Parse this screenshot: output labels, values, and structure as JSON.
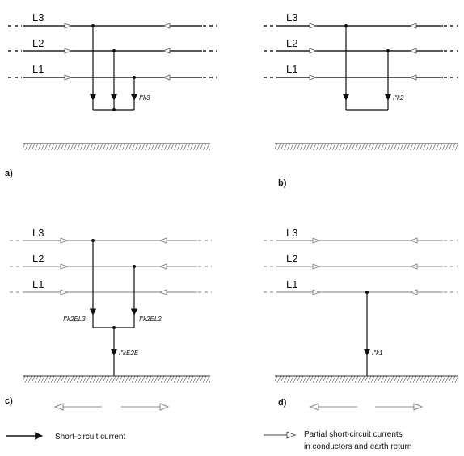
{
  "conductors": [
    "L3",
    "L2",
    "L1"
  ],
  "panels": {
    "a": {
      "label": "a)",
      "current": "I″k3"
    },
    "b": {
      "label": "b)",
      "current": "I″k2"
    },
    "c": {
      "label": "c)",
      "current_l3": "I″k2EL3",
      "current_l2": "I″k2EL2",
      "current_earth": "I″kE2E"
    },
    "d": {
      "label": "d)",
      "current": "I″k1"
    }
  },
  "legend": {
    "short_circuit": "Short-circuit current",
    "partial_line1": "Partial short-circuit currents",
    "partial_line2": "in conductors and earth return"
  }
}
